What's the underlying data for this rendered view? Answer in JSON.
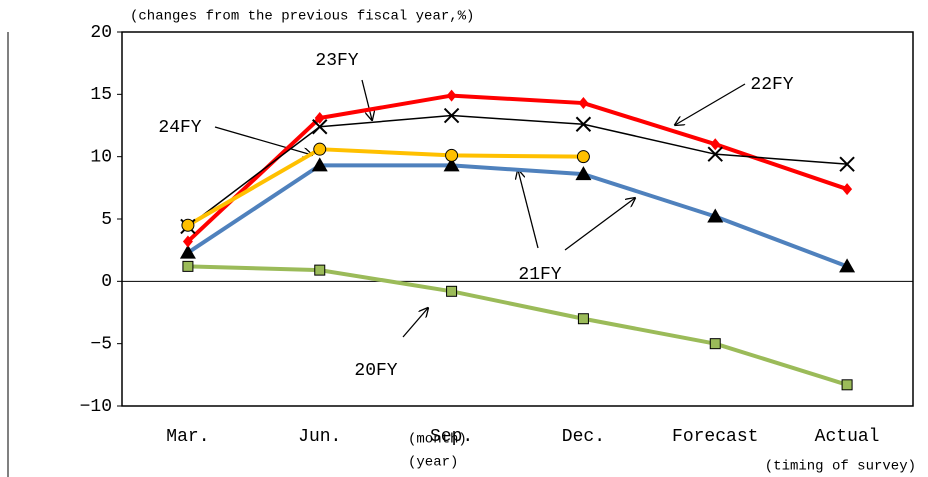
{
  "chart_data": {
    "type": "line",
    "subtitle": "(changes from the previous fiscal year,%)",
    "xlabel": "(timing of survey)",
    "corner_labels": [
      "(month)",
      "(year)"
    ],
    "categories": [
      "Mar.",
      "Jun.",
      "Sep.",
      "Dec.",
      "Forecast",
      "Actual"
    ],
    "series": [
      {
        "name": "20FY",
        "color": "#9bbb59",
        "marker": "square",
        "values": [
          1.2,
          0.9,
          -0.8,
          -3.0,
          -5.0,
          -8.3
        ]
      },
      {
        "name": "21FY",
        "color": "#4f81bd",
        "marker": "triangle",
        "values": [
          2.3,
          9.3,
          9.3,
          8.6,
          5.2,
          1.2
        ]
      },
      {
        "name": "22FY",
        "color": "#ff0000",
        "marker": "diamond",
        "values": [
          3.2,
          13.1,
          14.9,
          14.3,
          11.0,
          7.4
        ]
      },
      {
        "name": "23FY",
        "color": "#000000",
        "marker": "cross",
        "values": [
          4.4,
          12.4,
          13.3,
          12.6,
          10.2,
          9.4
        ]
      },
      {
        "name": "24FY",
        "color": "#ffc000",
        "marker": "circle",
        "values": [
          4.5,
          10.6,
          10.1,
          10.0,
          null,
          null
        ]
      }
    ],
    "ylim": [
      -10,
      20
    ],
    "yticks": [
      {
        "value": -10,
        "label": "−10"
      },
      {
        "value": -5,
        "label": "−5"
      },
      0,
      5,
      10,
      15,
      20
    ]
  }
}
